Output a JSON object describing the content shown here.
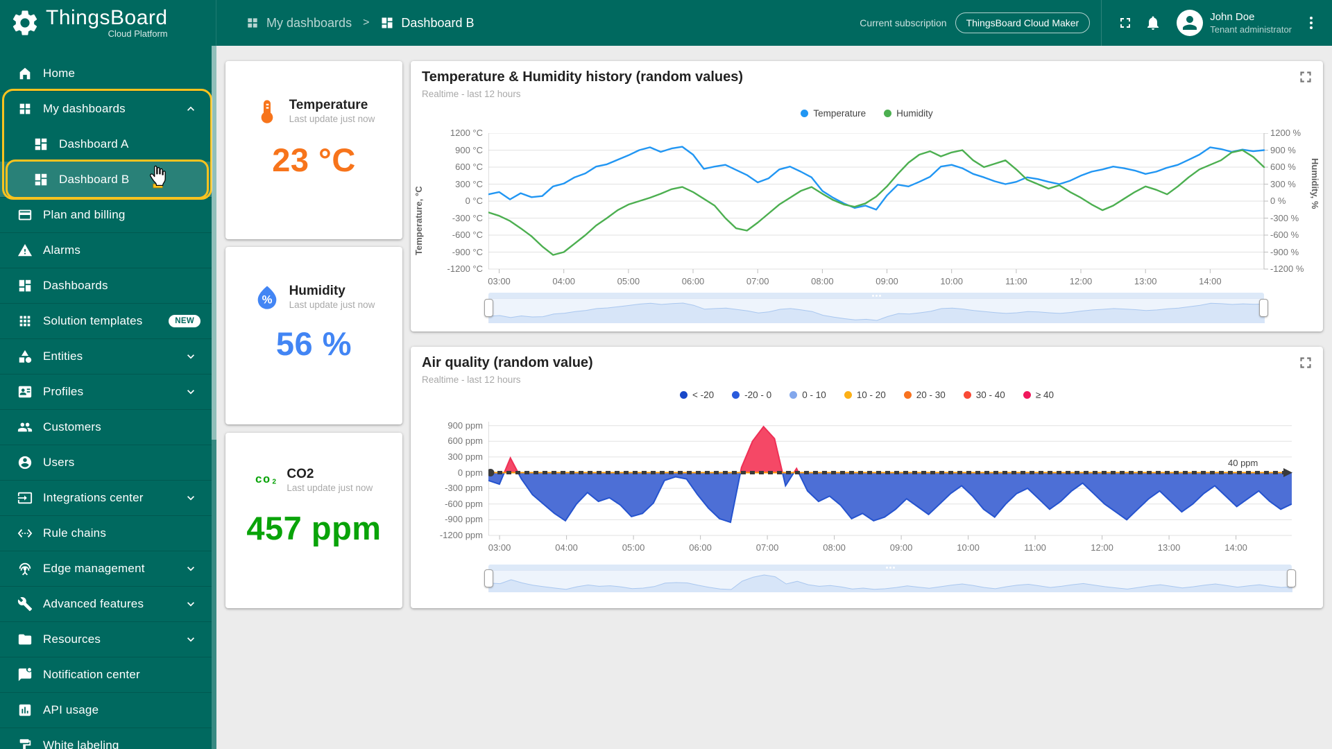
{
  "header": {
    "logo_title": "ThingsBoard",
    "logo_subtitle": "Cloud Platform",
    "breadcrumb": {
      "parent": "My dashboards",
      "separator": ">",
      "current": "Dashboard B"
    },
    "subscription_label": "Current subscription",
    "subscription_plan": "ThingsBoard Cloud Maker",
    "user": {
      "name": "John Doe",
      "role": "Tenant administrator"
    }
  },
  "sidebar": {
    "items": [
      {
        "label": "Home",
        "icon": "home"
      },
      {
        "label": "My dashboards",
        "icon": "grid",
        "expandable": true,
        "expanded": true,
        "sep": true
      },
      {
        "label": "Dashboard A",
        "icon": "dashboard",
        "child": true
      },
      {
        "label": "Dashboard B",
        "icon": "dashboard",
        "child": true,
        "selected": true
      },
      {
        "label": "Plan and billing",
        "icon": "card",
        "sep": true
      },
      {
        "label": "Alarms",
        "icon": "warning",
        "sep": true
      },
      {
        "label": "Dashboards",
        "icon": "dashboard",
        "sep": true
      },
      {
        "label": "Solution templates",
        "icon": "apps",
        "badge": "NEW",
        "sep": true
      },
      {
        "label": "Entities",
        "icon": "category",
        "expandable": true,
        "sep": true
      },
      {
        "label": "Profiles",
        "icon": "badge",
        "expandable": true,
        "sep": true
      },
      {
        "label": "Customers",
        "icon": "people",
        "sep": true
      },
      {
        "label": "Users",
        "icon": "person",
        "sep": true
      },
      {
        "label": "Integrations center",
        "icon": "input",
        "expandable": true,
        "sep": true
      },
      {
        "label": "Rule chains",
        "icon": "ethernet",
        "sep": true
      },
      {
        "label": "Edge management",
        "icon": "antenna",
        "expandable": true,
        "sep": true
      },
      {
        "label": "Advanced features",
        "icon": "build",
        "expandable": true,
        "sep": true
      },
      {
        "label": "Resources",
        "icon": "folder",
        "expandable": true,
        "sep": true
      },
      {
        "label": "Notification center",
        "icon": "chat",
        "sep": true
      },
      {
        "label": "API usage",
        "icon": "chart",
        "sep": true
      },
      {
        "label": "White labeling",
        "icon": "paint",
        "sep": true
      }
    ]
  },
  "cards": {
    "temperature": {
      "title": "Temperature",
      "subtitle": "Last update just now",
      "value": "23 °C",
      "color": "#f7741b"
    },
    "humidity": {
      "title": "Humidity",
      "subtitle": "Last update just now",
      "value": "56 %",
      "color": "#4285f4"
    },
    "co2": {
      "title": "CO2",
      "subtitle": "Last update just now",
      "value": "457 ppm",
      "color": "#09a309",
      "icon_text": "co₂"
    }
  },
  "chart_data": [
    {
      "type": "line",
      "title": "Temperature & Humidity history (random values)",
      "subtitle": "Realtime - last 12 hours",
      "x_ticks": [
        "03:00",
        "04:00",
        "05:00",
        "06:00",
        "07:00",
        "08:00",
        "09:00",
        "10:00",
        "11:00",
        "12:00",
        "13:00",
        "14:00"
      ],
      "x_range_minutes": [
        170,
        890
      ],
      "ylim": [
        -1200,
        1200
      ],
      "y_tick_step": 300,
      "y_left_unit": "°C",
      "y_right_unit": "%",
      "y_left_label": "Temperature, °C",
      "y_right_label": "Humidity, %",
      "grid": true,
      "legend_position": "top",
      "legend": [
        {
          "name": "Temperature",
          "color": "#2196f3"
        },
        {
          "name": "Humidity",
          "color": "#4caf50"
        }
      ],
      "series": [
        {
          "name": "Temperature",
          "color": "#2196f3",
          "values": [
            120,
            160,
            30,
            140,
            70,
            90,
            260,
            310,
            420,
            490,
            610,
            650,
            730,
            810,
            900,
            950,
            870,
            930,
            960,
            820,
            570,
            610,
            640,
            550,
            460,
            330,
            400,
            560,
            610,
            520,
            420,
            180,
            60,
            -40,
            -120,
            -80,
            -150,
            100,
            290,
            260,
            340,
            430,
            610,
            640,
            580,
            480,
            420,
            350,
            300,
            340,
            420,
            390,
            340,
            300,
            360,
            450,
            520,
            560,
            610,
            580,
            540,
            480,
            520,
            590,
            640,
            730,
            820,
            950,
            920,
            870,
            910,
            880,
            900
          ]
        },
        {
          "name": "Humidity",
          "color": "#4caf50",
          "values": [
            -200,
            -260,
            -350,
            -480,
            -620,
            -800,
            -950,
            -900,
            -750,
            -600,
            -430,
            -300,
            -160,
            -60,
            0,
            60,
            130,
            210,
            250,
            160,
            40,
            -80,
            -300,
            -480,
            -520,
            -380,
            -220,
            -60,
            60,
            180,
            250,
            130,
            20,
            -60,
            -100,
            -40,
            80,
            260,
            480,
            680,
            820,
            880,
            790,
            860,
            900,
            720,
            600,
            660,
            720,
            560,
            380,
            300,
            220,
            280,
            160,
            60,
            -60,
            -160,
            -80,
            40,
            160,
            260,
            200,
            120,
            260,
            420,
            560,
            640,
            720,
            860,
            900,
            780,
            600
          ]
        }
      ]
    },
    {
      "type": "area",
      "title": "Air quality (random value)",
      "subtitle": "Realtime - last 12 hours",
      "x_ticks": [
        "03:00",
        "04:00",
        "05:00",
        "06:00",
        "07:00",
        "08:00",
        "09:00",
        "10:00",
        "11:00",
        "12:00",
        "13:00",
        "14:00"
      ],
      "x_range_minutes": [
        170,
        890
      ],
      "ylim": [
        -1200,
        975
      ],
      "y_ticks": [
        900,
        600,
        300,
        0,
        -300,
        -600,
        -900,
        -1200
      ],
      "y_unit": "ppm",
      "grid": true,
      "threshold": {
        "label": "40 ppm",
        "y_value": 0,
        "line_color": "#3a3a3a",
        "under_color": "#ff9800"
      },
      "legend": [
        {
          "name": "< -20",
          "color": "#1848c9"
        },
        {
          "name": "-20 - 0",
          "color": "#2a5bdc"
        },
        {
          "name": "0 - 10",
          "color": "#82a7ec"
        },
        {
          "name": "10 - 20",
          "color": "#fcb017"
        },
        {
          "name": "20 - 30",
          "color": "#f8721f"
        },
        {
          "name": "30 - 40",
          "color": "#f94a36"
        },
        {
          "name": "≥ 40",
          "color": "#f0185c"
        }
      ],
      "fill_below": "#4d6fd6",
      "stroke_below": "#2553ce",
      "fill_above": "#f54866",
      "stroke_above": "#ee3056",
      "values": [
        -150,
        -220,
        280,
        -120,
        -420,
        -600,
        -780,
        -920,
        -600,
        -380,
        -550,
        -480,
        -620,
        -840,
        -780,
        -580,
        -150,
        -80,
        -120,
        -420,
        -680,
        -880,
        -950,
        100,
        600,
        880,
        650,
        -250,
        80,
        -350,
        -550,
        -450,
        -620,
        -880,
        -780,
        -920,
        -850,
        -700,
        -500,
        -650,
        -800,
        -600,
        -400,
        -250,
        -450,
        -700,
        -850,
        -600,
        -400,
        -300,
        -500,
        -700,
        -550,
        -350,
        -200,
        -400,
        -600,
        -750,
        -900,
        -700,
        -500,
        -350,
        -550,
        -750,
        -600,
        -400,
        -250,
        -450,
        -650,
        -500,
        -350,
        -550,
        -700,
        -600
      ]
    }
  ],
  "navigator_colors": {
    "fill": "#d7e5f8",
    "stroke": "#a9c7ef"
  }
}
